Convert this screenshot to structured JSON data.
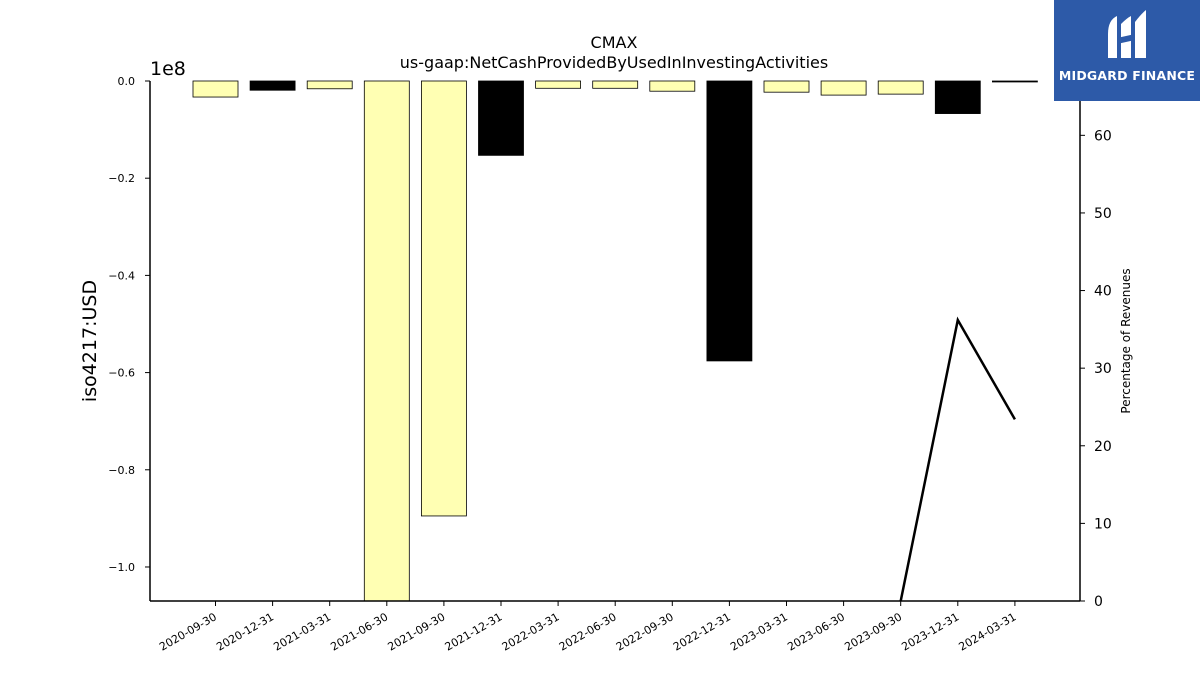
{
  "brand": {
    "name": "MIDGARD FINANCE",
    "background": "#2d5aa8",
    "icon": "midgard-m-logo-icon"
  },
  "chart_data": {
    "type": "bar",
    "title": "CMAX",
    "subtitle": "us-gaap:NetCashProvidedByUsedInInvestingActivities",
    "ylabel": "iso4217:USD",
    "y_scale_label": "1e8",
    "y2label": "Percentage of Revenues",
    "categories": [
      "2020-09-30",
      "2020-12-31",
      "2021-03-31",
      "2021-06-30",
      "2021-09-30",
      "2021-12-31",
      "2022-03-31",
      "2022-06-30",
      "2022-09-30",
      "2022-12-31",
      "2023-03-31",
      "2023-06-30",
      "2023-09-30",
      "2023-12-31",
      "2024-03-31"
    ],
    "values": [
      -3300000,
      -1900000,
      -1600000,
      -107000000,
      -89500000,
      -15300000,
      -1500000,
      -1500000,
      -2100000,
      -57600000,
      -2300000,
      -2900000,
      -2700000,
      -6700000,
      -200000
    ],
    "bar_colors": [
      "#ffffb3",
      "#000000",
      "#ffffb3",
      "#ffffb3",
      "#ffffb3",
      "#000000",
      "#ffffb3",
      "#ffffb3",
      "#ffffb3",
      "#000000",
      "#ffffb3",
      "#ffffb3",
      "#ffffb3",
      "#000000",
      "#000000"
    ],
    "ylim": [
      -107000000,
      0
    ],
    "yticks": [
      0,
      -20000000,
      -40000000,
      -60000000,
      -80000000,
      -100000000
    ],
    "ytick_labels": [
      "0.0",
      "−0.2",
      "−0.4",
      "−0.6",
      "−0.8",
      "−1.0"
    ],
    "y2lim": [
      0,
      67
    ],
    "y2ticks": [
      0,
      10,
      20,
      30,
      40,
      50,
      60
    ],
    "y2tick_labels": [
      "0",
      "10",
      "20",
      "30",
      "40",
      "50",
      "60"
    ],
    "line_series": {
      "name": "",
      "x": [
        "2023-09-30",
        "2023-12-31",
        "2024-03-31"
      ],
      "values": [
        0,
        36.2,
        23.4
      ],
      "color": "#000000"
    },
    "grid": false
  }
}
